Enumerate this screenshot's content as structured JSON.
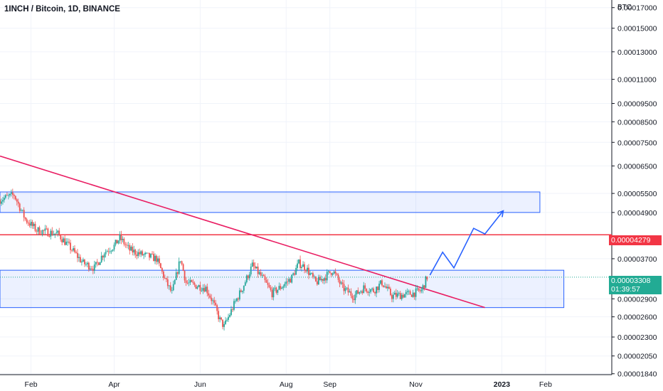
{
  "header": {
    "title": "1INCH / Bitcoin, 1D, BINANCE"
  },
  "axis": {
    "unit": "BTC"
  },
  "chart_data": {
    "type": "candlestick",
    "title": "1INCH / Bitcoin, 1D, BINANCE",
    "y_scale": "log",
    "y_tick_labels": [
      "0.00017000",
      "0.00015000",
      "0.00013000",
      "0.00011000",
      "0.00009500",
      "0.00008500",
      "0.00007500",
      "0.00006500",
      "0.00005500",
      "0.00004900",
      "0.00003700",
      "0.00002900",
      "0.00002600",
      "0.00002300",
      "0.00002050",
      "0.00001840"
    ],
    "y_ticks": [
      0.00017,
      0.00015,
      0.00013,
      0.00011,
      9.5e-05,
      8.5e-05,
      7.5e-05,
      6.5e-05,
      5.5e-05,
      4.9e-05,
      3.7e-05,
      2.9e-05,
      2.6e-05,
      2.3e-05,
      2.05e-05,
      1.84e-05
    ],
    "x_tick_labels": [
      "Feb",
      "Apr",
      "Jun",
      "Aug",
      "Sep",
      "Nov",
      "2023",
      "Feb"
    ],
    "x_ticks": [
      "2022-02-01",
      "2022-04-01",
      "2022-06-01",
      "2022-08-01",
      "2022-09-01",
      "2022-11-01",
      "2023-01-01",
      "2023-02-01"
    ],
    "x_range": [
      "2022-01-10",
      "2023-03-20"
    ],
    "price_path": [
      [
        "2022-01-10",
        5.3e-05
      ],
      [
        "2022-01-20",
        5.45e-05
      ],
      [
        "2022-01-28",
        4.7e-05
      ],
      [
        "2022-02-05",
        4.4e-05
      ],
      [
        "2022-02-20",
        4.3e-05
      ],
      [
        "2022-03-01",
        3.95e-05
      ],
      [
        "2022-03-10",
        3.6e-05
      ],
      [
        "2022-03-18",
        3.5e-05
      ],
      [
        "2022-03-25",
        3.85e-05
      ],
      [
        "2022-04-01",
        4e-05
      ],
      [
        "2022-04-05",
        4.2e-05
      ],
      [
        "2022-04-12",
        3.9e-05
      ],
      [
        "2022-04-20",
        3.8e-05
      ],
      [
        "2022-05-01",
        3.7e-05
      ],
      [
        "2022-05-08",
        3.2e-05
      ],
      [
        "2022-05-12",
        3e-05
      ],
      [
        "2022-05-18",
        3.7e-05
      ],
      [
        "2022-05-22",
        3.2e-05
      ],
      [
        "2022-05-28",
        3.15e-05
      ],
      [
        "2022-06-05",
        3.1e-05
      ],
      [
        "2022-06-10",
        2.85e-05
      ],
      [
        "2022-06-15",
        2.55e-05
      ],
      [
        "2022-06-18",
        2.45e-05
      ],
      [
        "2022-06-25",
        2.8e-05
      ],
      [
        "2022-07-01",
        3.1e-05
      ],
      [
        "2022-07-08",
        3.55e-05
      ],
      [
        "2022-07-15",
        3.3e-05
      ],
      [
        "2022-07-22",
        3e-05
      ],
      [
        "2022-07-30",
        3.15e-05
      ],
      [
        "2022-08-05",
        3.3e-05
      ],
      [
        "2022-08-10",
        3.6e-05
      ],
      [
        "2022-08-15",
        3.5e-05
      ],
      [
        "2022-08-22",
        3.2e-05
      ],
      [
        "2022-08-28",
        3.3e-05
      ],
      [
        "2022-09-03",
        3.45e-05
      ],
      [
        "2022-09-10",
        3.1e-05
      ],
      [
        "2022-09-18",
        2.95e-05
      ],
      [
        "2022-09-25",
        3.1e-05
      ],
      [
        "2022-10-02",
        3.05e-05
      ],
      [
        "2022-10-08",
        3.2e-05
      ],
      [
        "2022-10-15",
        2.95e-05
      ],
      [
        "2022-10-22",
        2.97e-05
      ],
      [
        "2022-10-30",
        3e-05
      ],
      [
        "2022-11-05",
        3.05e-05
      ],
      [
        "2022-11-09",
        3.31e-05
      ]
    ],
    "zones": [
      {
        "from": "2022-01-10",
        "to": "2023-01-28",
        "low": 4.9e-05,
        "high": 5.55e-05,
        "color": "#2962ff"
      },
      {
        "from": "2022-01-10",
        "to": "2023-02-14",
        "low": 2.75e-05,
        "high": 3.45e-05,
        "color": "#2962ff"
      }
    ],
    "resistance": {
      "value": 4.279e-05,
      "color": "#f23645"
    },
    "trendline": {
      "from": [
        "2022-01-10",
        6.9e-05
      ],
      "to": [
        "2022-12-20",
        2.75e-05
      ],
      "color": "#e91e63"
    },
    "projection": [
      [
        "2022-11-11",
        3.35e-05
      ],
      [
        "2022-11-20",
        3.85e-05
      ],
      [
        "2022-11-28",
        3.5e-05
      ],
      [
        "2022-12-12",
        4.45e-05
      ],
      [
        "2022-12-20",
        4.3e-05
      ],
      [
        "2023-01-02",
        4.95e-05
      ]
    ],
    "last_price": {
      "label": "0.00003308",
      "value": 3.308e-05,
      "countdown": "01:39:57",
      "color": "#22ab94"
    },
    "resistance_label": "0.00004279"
  }
}
